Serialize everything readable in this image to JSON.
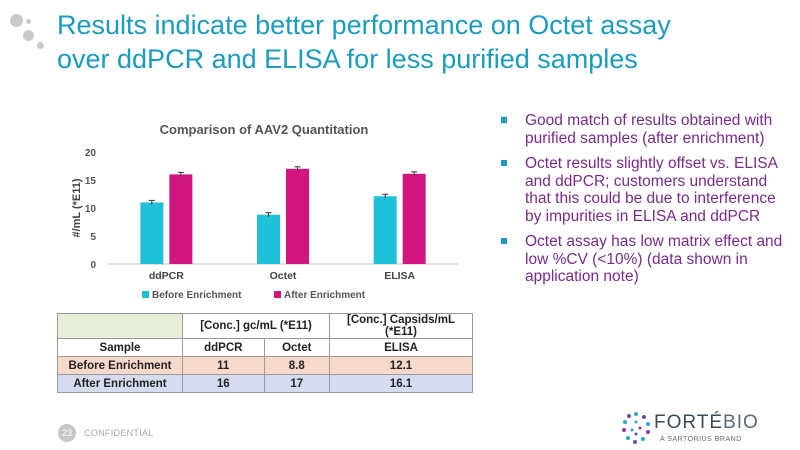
{
  "slide": {
    "title_line1": "Results indicate better performance on Octet assay",
    "title_line2": "over ddPCR and ELISA for less purified samples",
    "page_number": "23",
    "footer_label": "CONFIDENTIAL",
    "brand_name_a": "FORTÉ",
    "brand_name_b": "BIO",
    "brand_tagline": "A SARTORIUS BRAND"
  },
  "colors": {
    "title": "#1b9cbf",
    "bullet_text": "#7a2a8c",
    "series_before": "#1fc1d9",
    "series_after": "#d0157f"
  },
  "bullets": [
    "Good match of results obtained with purified samples (after enrichment)",
    "Octet results slightly offset vs. ELISA and ddPCR; customers understand that this could be due to interference by impurities in ELISA and ddPCR",
    "Octet assay has low matrix effect and low %CV (<10%) (data shown in application note)"
  ],
  "chart_data": {
    "type": "bar",
    "title": "Comparison of AAV2 Quantitation",
    "ylabel": "#/mL (*E11)",
    "xlabel": "",
    "categories": [
      "ddPCR",
      "Octet",
      "ELISA"
    ],
    "series": [
      {
        "name": "Before Enrichment",
        "values": [
          11,
          8.8,
          12.1
        ]
      },
      {
        "name": "After Enrichment",
        "values": [
          16,
          17,
          16.1
        ]
      }
    ],
    "ylim": [
      0,
      20
    ],
    "yticks": [
      0,
      5,
      10,
      15,
      20
    ],
    "error_bars": true,
    "legend": "bottom",
    "grid": false
  },
  "table": {
    "group_header_1": "[Conc.] gc/mL (*E11)",
    "group_header_2": "[Conc.] Capsids/mL (*E11)",
    "columns": [
      "Sample",
      "ddPCR",
      "Octet",
      "ELISA"
    ],
    "rows": [
      [
        "Before Enrichment",
        "11",
        "8.8",
        "12.1"
      ],
      [
        "After Enrichment",
        "16",
        "17",
        "16.1"
      ]
    ]
  }
}
